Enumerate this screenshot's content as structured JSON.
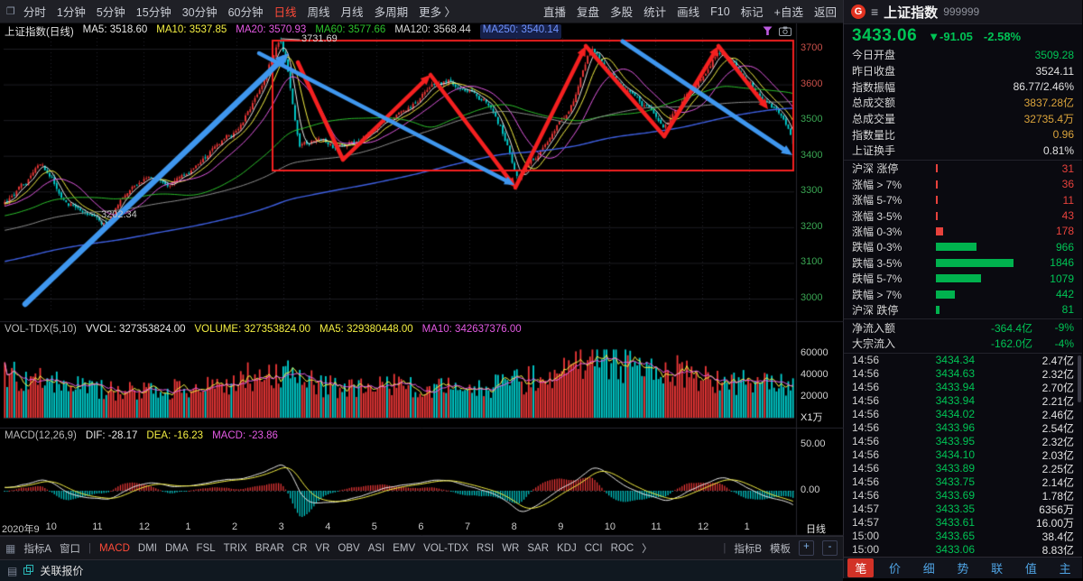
{
  "toolbar": {
    "left_items": [
      "分时",
      "1分钟",
      "5分钟",
      "15分钟",
      "30分钟",
      "60分钟",
      "日线",
      "周线",
      "月线",
      "多周期",
      "更多 〉"
    ],
    "active_left": "日线",
    "right_items": [
      "直播",
      "复盘",
      "多股",
      "统计",
      "画线",
      "F10",
      "标记",
      "+自选",
      "返回"
    ]
  },
  "main_chart": {
    "title": "上证指数(日线)",
    "ma_values": [
      {
        "text": "MA5: 3518.60",
        "color": "#e8e8e8"
      },
      {
        "text": "MA10: 3537.85",
        "color": "#f5f043"
      },
      {
        "text": "MA20: 3570.93",
        "color": "#e45ae4"
      },
      {
        "text": "MA60: 3577.66",
        "color": "#2cc22c"
      },
      {
        "text": "MA120: 3568.44",
        "color": "#d8d8d8"
      },
      {
        "text": "MA250: 3540.14",
        "color": "#6f93ff",
        "highlight": true
      }
    ],
    "y_ticks": [
      3700,
      3600,
      3500,
      3400,
      3300,
      3200,
      3100,
      3000
    ],
    "peak_label": "3731.69",
    "trough_label": "3202.34",
    "x_ticks": [
      "2020年9",
      "10",
      "11",
      "12",
      "1",
      "2",
      "3",
      "4",
      "5",
      "6",
      "7",
      "8",
      "9",
      "10",
      "11",
      "12",
      "1"
    ],
    "period_label": "日线"
  },
  "volume_panel": {
    "labels": [
      {
        "text": "VOL-TDX(5,10)",
        "color": "#b9b9b9"
      },
      {
        "text": "VVOL: 327353824.00",
        "color": "#e8e8e8"
      },
      {
        "text": "VOLUME: 327353824.00",
        "color": "#f5f043"
      },
      {
        "text": "MA5: 329380448.00",
        "color": "#f5f043"
      },
      {
        "text": "MA10: 342637376.00",
        "color": "#e45ae4"
      }
    ],
    "y_ticks": [
      60000,
      40000,
      20000
    ],
    "unit_label": "X1万"
  },
  "macd_panel": {
    "labels": [
      {
        "text": "MACD(12,26,9)",
        "color": "#b9b9b9"
      },
      {
        "text": "DIF: -28.17",
        "color": "#e8e8e8"
      },
      {
        "text": "DEA: -16.23",
        "color": "#f5f043"
      },
      {
        "text": "MACD: -23.86",
        "color": "#e45ae4"
      }
    ],
    "y_ticks": [
      "50.00",
      "0.00"
    ]
  },
  "indicator_bar": {
    "left_labels": [
      "指标A",
      "窗口"
    ],
    "tabs": [
      "MACD",
      "DMI",
      "DMA",
      "FSL",
      "TRIX",
      "BRAR",
      "CR",
      "VR",
      "OBV",
      "ASI",
      "EMV",
      "VOL-TDX",
      "RSI",
      "WR",
      "SAR",
      "KDJ",
      "CCI",
      "ROC"
    ],
    "active_tab": "MACD",
    "more_arrow": "〉",
    "right_labels": [
      "指标B",
      "模板"
    ],
    "zoom_in": "+",
    "zoom_out": "-"
  },
  "status_bar": {
    "link_label": "关联报价"
  },
  "quote_panel": {
    "logo_letter": "G",
    "name": "上证指数",
    "code": "999999",
    "price": "3433.06",
    "change": "▼-91.05",
    "change_pct": "-2.58%",
    "info_rows": [
      {
        "label": "今日开盘",
        "value": "3509.28",
        "color": "green"
      },
      {
        "label": "昨日收盘",
        "value": "3524.11",
        "color": "white"
      },
      {
        "label": "指数振幅",
        "value": "86.77/2.46%",
        "color": "white"
      },
      {
        "label": "总成交额",
        "value": "3837.28亿",
        "color": "orange"
      },
      {
        "label": "总成交量",
        "value": "32735.4万",
        "color": "orange"
      },
      {
        "label": "指数量比",
        "value": "0.96",
        "color": "orange"
      },
      {
        "label": "上证换手",
        "value": "0.81%",
        "color": "white"
      }
    ],
    "breadth_rows": [
      {
        "label": "沪深 涨停",
        "value": "31",
        "side": "up"
      },
      {
        "label": "涨幅 > 7%",
        "value": "36",
        "side": "up"
      },
      {
        "label": "涨幅 5-7%",
        "value": "11",
        "side": "up"
      },
      {
        "label": "涨幅 3-5%",
        "value": "43",
        "side": "up"
      },
      {
        "label": "涨幅 0-3%",
        "value": "178",
        "side": "up"
      },
      {
        "label": "跌幅 0-3%",
        "value": "966",
        "side": "down"
      },
      {
        "label": "跌幅 3-5%",
        "value": "1846",
        "side": "down"
      },
      {
        "label": "跌幅 5-7%",
        "value": "1079",
        "side": "down"
      },
      {
        "label": "跌幅 > 7%",
        "value": "442",
        "side": "down"
      },
      {
        "label": "沪深 跌停",
        "value": "81",
        "side": "down"
      }
    ],
    "breadth_max": 1846,
    "flow_rows": [
      {
        "label": "净流入额",
        "value": "-364.4亿",
        "pct": "-9%"
      },
      {
        "label": "大宗流入",
        "value": "-162.0亿",
        "pct": "-4%"
      }
    ],
    "tick_rows": [
      {
        "time": "14:56",
        "price": "3434.34",
        "amt": "2.47亿"
      },
      {
        "time": "14:56",
        "price": "3434.63",
        "amt": "2.32亿"
      },
      {
        "time": "14:56",
        "price": "3433.94",
        "amt": "2.70亿"
      },
      {
        "time": "14:56",
        "price": "3433.94",
        "amt": "2.21亿"
      },
      {
        "time": "14:56",
        "price": "3434.02",
        "amt": "2.46亿"
      },
      {
        "time": "14:56",
        "price": "3433.96",
        "amt": "2.54亿"
      },
      {
        "time": "14:56",
        "price": "3433.95",
        "amt": "2.32亿"
      },
      {
        "time": "14:56",
        "price": "3434.10",
        "amt": "2.03亿"
      },
      {
        "time": "14:56",
        "price": "3433.89",
        "amt": "2.25亿"
      },
      {
        "time": "14:56",
        "price": "3433.75",
        "amt": "2.14亿"
      },
      {
        "time": "14:56",
        "price": "3433.69",
        "amt": "1.78亿"
      },
      {
        "time": "14:57",
        "price": "3433.35",
        "amt": "6356万"
      },
      {
        "time": "14:57",
        "price": "3433.61",
        "amt": "16.00万"
      },
      {
        "time": "15:00",
        "price": "3433.65",
        "amt": "38.4亿"
      },
      {
        "time": "15:00",
        "price": "3433.06",
        "amt": "8.83亿"
      }
    ],
    "bottom_tabs": [
      "笔",
      "价",
      "细",
      "势",
      "联",
      "值",
      "主"
    ],
    "active_bottom_tab": "笔"
  },
  "chart_data": {
    "type": "candlestick",
    "symbol": "上证指数",
    "code": "999999",
    "period": "日线",
    "last_close": 3433.06,
    "prev_close": 3524.11,
    "open": 3509.28,
    "peak": 3731.69,
    "trough": 3202.34,
    "price_axis_range": [
      3000,
      3700
    ],
    "volume_axis_max": 60000,
    "ma": {
      "MA5": 3518.6,
      "MA10": 3537.85,
      "MA20": 3570.93,
      "MA60": 3577.66,
      "MA120": 3568.44,
      "MA250": 3540.14
    },
    "macd": {
      "DIF": -28.17,
      "DEA": -16.23,
      "MACD": -23.86
    },
    "price_anchors_frac_price": [
      [
        0,
        3272
      ],
      [
        0.03,
        3332
      ],
      [
        0.047,
        3388
      ],
      [
        0.07,
        3298
      ],
      [
        0.092,
        3255
      ],
      [
        0.115,
        3228
      ],
      [
        0.127,
        3206
      ],
      [
        0.155,
        3298
      ],
      [
        0.184,
        3345
      ],
      [
        0.207,
        3312
      ],
      [
        0.235,
        3368
      ],
      [
        0.264,
        3420
      ],
      [
        0.29,
        3462
      ],
      [
        0.313,
        3545
      ],
      [
        0.332,
        3638
      ],
      [
        0.349,
        3722
      ],
      [
        0.36,
        3630
      ],
      [
        0.374,
        3428
      ],
      [
        0.401,
        3452
      ],
      [
        0.42,
        3420
      ],
      [
        0.441,
        3432
      ],
      [
        0.475,
        3478
      ],
      [
        0.509,
        3525
      ],
      [
        0.541,
        3595
      ],
      [
        0.566,
        3608
      ],
      [
        0.589,
        3582
      ],
      [
        0.617,
        3545
      ],
      [
        0.635,
        3452
      ],
      [
        0.651,
        3325
      ],
      [
        0.669,
        3382
      ],
      [
        0.692,
        3442
      ],
      [
        0.709,
        3505
      ],
      [
        0.726,
        3585
      ],
      [
        0.743,
        3702
      ],
      [
        0.758,
        3662
      ],
      [
        0.774,
        3618
      ],
      [
        0.789,
        3582
      ],
      [
        0.806,
        3545
      ],
      [
        0.837,
        3482
      ],
      [
        0.857,
        3545
      ],
      [
        0.88,
        3605
      ],
      [
        0.905,
        3692
      ],
      [
        0.926,
        3652
      ],
      [
        0.943,
        3605
      ],
      [
        0.96,
        3562
      ],
      [
        0.977,
        3532
      ],
      [
        0.991,
        3482
      ],
      [
        1,
        3435
      ]
    ],
    "volume_anchors_frac_val": [
      [
        0,
        39000
      ],
      [
        0.05,
        33000
      ],
      [
        0.1,
        27000
      ],
      [
        0.15,
        24000
      ],
      [
        0.2,
        26000
      ],
      [
        0.26,
        30000
      ],
      [
        0.3,
        37000
      ],
      [
        0.35,
        41000
      ],
      [
        0.4,
        30000
      ],
      [
        0.45,
        27000
      ],
      [
        0.5,
        30000
      ],
      [
        0.55,
        28000
      ],
      [
        0.6,
        26000
      ],
      [
        0.63,
        30000
      ],
      [
        0.66,
        34000
      ],
      [
        0.7,
        42000
      ],
      [
        0.73,
        54000
      ],
      [
        0.755,
        61000
      ],
      [
        0.78,
        50000
      ],
      [
        0.81,
        42000
      ],
      [
        0.84,
        44000
      ],
      [
        0.87,
        40000
      ],
      [
        0.9,
        35000
      ],
      [
        0.93,
        33000
      ],
      [
        0.96,
        31000
      ],
      [
        1,
        30000
      ]
    ]
  }
}
